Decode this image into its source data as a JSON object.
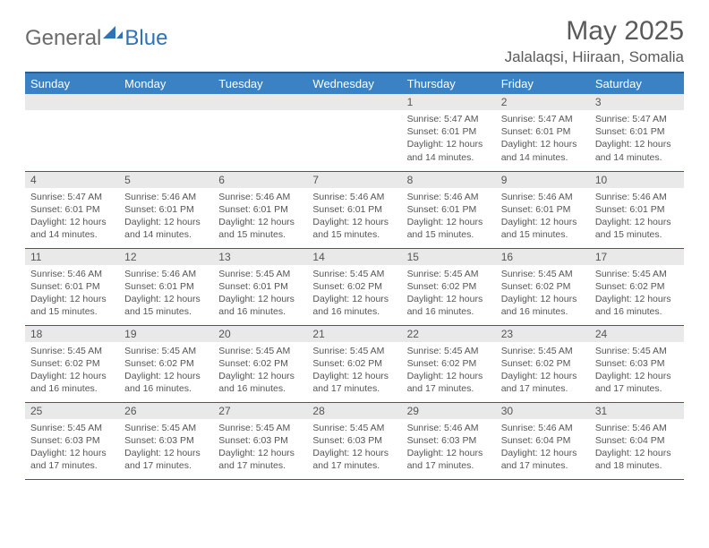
{
  "logo": {
    "text_gray": "General",
    "text_blue": "Blue"
  },
  "title": "May 2025",
  "location": "Jalalaqsi, Hiiraan, Somalia",
  "colors": {
    "header_bg": "#3a82c4",
    "header_border": "#2a5f94",
    "daybar_bg": "#e9e9e9",
    "text": "#555555"
  },
  "day_names": [
    "Sunday",
    "Monday",
    "Tuesday",
    "Wednesday",
    "Thursday",
    "Friday",
    "Saturday"
  ],
  "weeks": [
    [
      {
        "n": "",
        "sr": "",
        "ss": "",
        "dl1": "",
        "dl2": ""
      },
      {
        "n": "",
        "sr": "",
        "ss": "",
        "dl1": "",
        "dl2": ""
      },
      {
        "n": "",
        "sr": "",
        "ss": "",
        "dl1": "",
        "dl2": ""
      },
      {
        "n": "",
        "sr": "",
        "ss": "",
        "dl1": "",
        "dl2": ""
      },
      {
        "n": "1",
        "sr": "Sunrise: 5:47 AM",
        "ss": "Sunset: 6:01 PM",
        "dl1": "Daylight: 12 hours",
        "dl2": "and 14 minutes."
      },
      {
        "n": "2",
        "sr": "Sunrise: 5:47 AM",
        "ss": "Sunset: 6:01 PM",
        "dl1": "Daylight: 12 hours",
        "dl2": "and 14 minutes."
      },
      {
        "n": "3",
        "sr": "Sunrise: 5:47 AM",
        "ss": "Sunset: 6:01 PM",
        "dl1": "Daylight: 12 hours",
        "dl2": "and 14 minutes."
      }
    ],
    [
      {
        "n": "4",
        "sr": "Sunrise: 5:47 AM",
        "ss": "Sunset: 6:01 PM",
        "dl1": "Daylight: 12 hours",
        "dl2": "and 14 minutes."
      },
      {
        "n": "5",
        "sr": "Sunrise: 5:46 AM",
        "ss": "Sunset: 6:01 PM",
        "dl1": "Daylight: 12 hours",
        "dl2": "and 14 minutes."
      },
      {
        "n": "6",
        "sr": "Sunrise: 5:46 AM",
        "ss": "Sunset: 6:01 PM",
        "dl1": "Daylight: 12 hours",
        "dl2": "and 15 minutes."
      },
      {
        "n": "7",
        "sr": "Sunrise: 5:46 AM",
        "ss": "Sunset: 6:01 PM",
        "dl1": "Daylight: 12 hours",
        "dl2": "and 15 minutes."
      },
      {
        "n": "8",
        "sr": "Sunrise: 5:46 AM",
        "ss": "Sunset: 6:01 PM",
        "dl1": "Daylight: 12 hours",
        "dl2": "and 15 minutes."
      },
      {
        "n": "9",
        "sr": "Sunrise: 5:46 AM",
        "ss": "Sunset: 6:01 PM",
        "dl1": "Daylight: 12 hours",
        "dl2": "and 15 minutes."
      },
      {
        "n": "10",
        "sr": "Sunrise: 5:46 AM",
        "ss": "Sunset: 6:01 PM",
        "dl1": "Daylight: 12 hours",
        "dl2": "and 15 minutes."
      }
    ],
    [
      {
        "n": "11",
        "sr": "Sunrise: 5:46 AM",
        "ss": "Sunset: 6:01 PM",
        "dl1": "Daylight: 12 hours",
        "dl2": "and 15 minutes."
      },
      {
        "n": "12",
        "sr": "Sunrise: 5:46 AM",
        "ss": "Sunset: 6:01 PM",
        "dl1": "Daylight: 12 hours",
        "dl2": "and 15 minutes."
      },
      {
        "n": "13",
        "sr": "Sunrise: 5:45 AM",
        "ss": "Sunset: 6:01 PM",
        "dl1": "Daylight: 12 hours",
        "dl2": "and 16 minutes."
      },
      {
        "n": "14",
        "sr": "Sunrise: 5:45 AM",
        "ss": "Sunset: 6:02 PM",
        "dl1": "Daylight: 12 hours",
        "dl2": "and 16 minutes."
      },
      {
        "n": "15",
        "sr": "Sunrise: 5:45 AM",
        "ss": "Sunset: 6:02 PM",
        "dl1": "Daylight: 12 hours",
        "dl2": "and 16 minutes."
      },
      {
        "n": "16",
        "sr": "Sunrise: 5:45 AM",
        "ss": "Sunset: 6:02 PM",
        "dl1": "Daylight: 12 hours",
        "dl2": "and 16 minutes."
      },
      {
        "n": "17",
        "sr": "Sunrise: 5:45 AM",
        "ss": "Sunset: 6:02 PM",
        "dl1": "Daylight: 12 hours",
        "dl2": "and 16 minutes."
      }
    ],
    [
      {
        "n": "18",
        "sr": "Sunrise: 5:45 AM",
        "ss": "Sunset: 6:02 PM",
        "dl1": "Daylight: 12 hours",
        "dl2": "and 16 minutes."
      },
      {
        "n": "19",
        "sr": "Sunrise: 5:45 AM",
        "ss": "Sunset: 6:02 PM",
        "dl1": "Daylight: 12 hours",
        "dl2": "and 16 minutes."
      },
      {
        "n": "20",
        "sr": "Sunrise: 5:45 AM",
        "ss": "Sunset: 6:02 PM",
        "dl1": "Daylight: 12 hours",
        "dl2": "and 16 minutes."
      },
      {
        "n": "21",
        "sr": "Sunrise: 5:45 AM",
        "ss": "Sunset: 6:02 PM",
        "dl1": "Daylight: 12 hours",
        "dl2": "and 17 minutes."
      },
      {
        "n": "22",
        "sr": "Sunrise: 5:45 AM",
        "ss": "Sunset: 6:02 PM",
        "dl1": "Daylight: 12 hours",
        "dl2": "and 17 minutes."
      },
      {
        "n": "23",
        "sr": "Sunrise: 5:45 AM",
        "ss": "Sunset: 6:02 PM",
        "dl1": "Daylight: 12 hours",
        "dl2": "and 17 minutes."
      },
      {
        "n": "24",
        "sr": "Sunrise: 5:45 AM",
        "ss": "Sunset: 6:03 PM",
        "dl1": "Daylight: 12 hours",
        "dl2": "and 17 minutes."
      }
    ],
    [
      {
        "n": "25",
        "sr": "Sunrise: 5:45 AM",
        "ss": "Sunset: 6:03 PM",
        "dl1": "Daylight: 12 hours",
        "dl2": "and 17 minutes."
      },
      {
        "n": "26",
        "sr": "Sunrise: 5:45 AM",
        "ss": "Sunset: 6:03 PM",
        "dl1": "Daylight: 12 hours",
        "dl2": "and 17 minutes."
      },
      {
        "n": "27",
        "sr": "Sunrise: 5:45 AM",
        "ss": "Sunset: 6:03 PM",
        "dl1": "Daylight: 12 hours",
        "dl2": "and 17 minutes."
      },
      {
        "n": "28",
        "sr": "Sunrise: 5:45 AM",
        "ss": "Sunset: 6:03 PM",
        "dl1": "Daylight: 12 hours",
        "dl2": "and 17 minutes."
      },
      {
        "n": "29",
        "sr": "Sunrise: 5:46 AM",
        "ss": "Sunset: 6:03 PM",
        "dl1": "Daylight: 12 hours",
        "dl2": "and 17 minutes."
      },
      {
        "n": "30",
        "sr": "Sunrise: 5:46 AM",
        "ss": "Sunset: 6:04 PM",
        "dl1": "Daylight: 12 hours",
        "dl2": "and 17 minutes."
      },
      {
        "n": "31",
        "sr": "Sunrise: 5:46 AM",
        "ss": "Sunset: 6:04 PM",
        "dl1": "Daylight: 12 hours",
        "dl2": "and 18 minutes."
      }
    ]
  ]
}
